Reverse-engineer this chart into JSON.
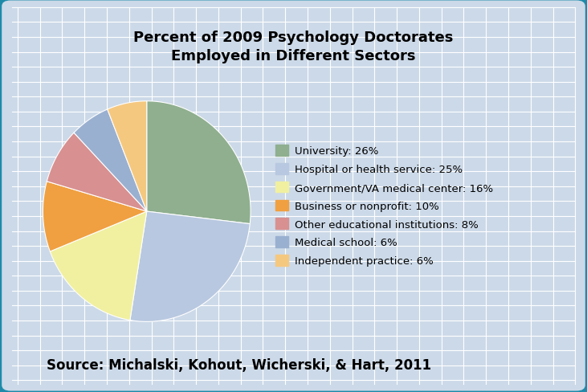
{
  "title": "Percent of 2009 Psychology Doctorates\nEmployed in Different Sectors",
  "source": "Source: Michalski, Kohout, Wicherski, & Hart, 2011",
  "labels": [
    "University: 26%",
    "Hospital or health service: 25%",
    "Government/VA medical center: 16%",
    "Business or nonprofit: 10%",
    "Other educational institutions: 8%",
    "Medical school: 6%",
    "Independent practice: 6%"
  ],
  "values": [
    26,
    25,
    16,
    10,
    8,
    6,
    6
  ],
  "colors": [
    "#8faf8f",
    "#b8c8e0",
    "#f0f0a0",
    "#f0a040",
    "#d89090",
    "#9ab0d0",
    "#f5c880"
  ],
  "background_color": "#ccd9e8",
  "border_color": "#1e8aaa",
  "grid_color": "#ffffff",
  "title_fontsize": 13,
  "source_fontsize": 12,
  "legend_fontsize": 9.5
}
